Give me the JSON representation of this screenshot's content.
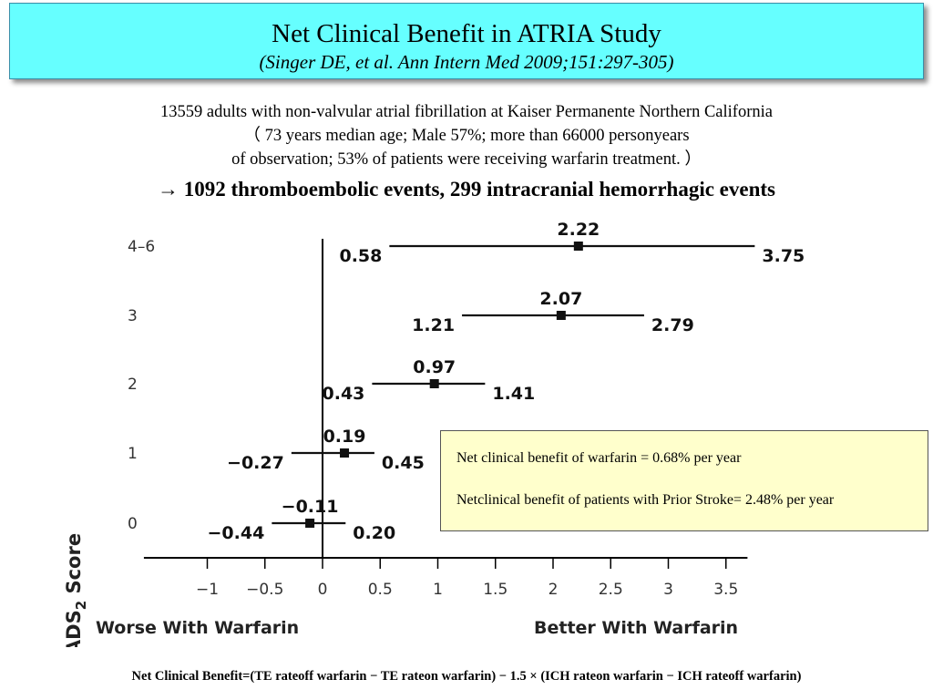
{
  "header": {
    "title": "Net Clinical Benefit in ATRIA Study",
    "subtitle": "(Singer DE, et al. Ann Intern Med 2009;151:297-305)"
  },
  "intro": {
    "line1": "13559 adults with non-valvular atrial fibrillation at Kaiser Permanente Northern California",
    "line2": "（ 73 years median age; Male 57%; more than 66000 personyears",
    "line3": "of observation; 53% of patients were receiving warfarin treatment. ）",
    "line4": "→ 1092 thromboembolic events, 299 intracranial hemorrhagic events"
  },
  "note": {
    "line1": "Net clinical benefit of warfarin = 0.68% per year",
    "line2": "Netclinical benefit of patients with Prior Stroke= 2.48% per year"
  },
  "footer": {
    "formula": "Net Clinical Benefit=(TE rateoff warfarin − TE rateon warfarin) − 1.5 × (ICH rateon warfarin − ICH rateoff warfarin)"
  },
  "chart_data": {
    "type": "forest",
    "ylabel_main": "CHADS",
    "ylabel_sub": "2",
    "ylabel_tail": " Score",
    "xlabel_left": "Worse With Warfarin",
    "xlabel_right": "Better With Warfarin",
    "xlim": [
      -1.55,
      3.75
    ],
    "xticks": [
      -1,
      -0.5,
      0,
      0.5,
      1,
      1.5,
      2,
      2.5,
      3,
      3.5
    ],
    "xtick_labels": [
      "−1",
      "−0.5",
      "0",
      "0.5",
      "1",
      "1.5",
      "2",
      "2.5",
      "3",
      "3.5"
    ],
    "reference_line": 0,
    "rows": [
      {
        "category": "4–6",
        "estimate": 2.22,
        "lower": 0.58,
        "upper": 3.75,
        "estimate_label": "2.22",
        "lower_label": "0.58",
        "upper_label": "3.75"
      },
      {
        "category": "3",
        "estimate": 2.07,
        "lower": 1.21,
        "upper": 2.79,
        "estimate_label": "2.07",
        "lower_label": "1.21",
        "upper_label": "2.79"
      },
      {
        "category": "2",
        "estimate": 0.97,
        "lower": 0.43,
        "upper": 1.41,
        "estimate_label": "0.97",
        "lower_label": "0.43",
        "upper_label": "1.41"
      },
      {
        "category": "1",
        "estimate": 0.19,
        "lower": -0.27,
        "upper": 0.45,
        "estimate_label": "0.19",
        "lower_label": "−0.27",
        "upper_label": "0.45"
      },
      {
        "category": "0",
        "estimate": -0.11,
        "lower": -0.44,
        "upper": 0.2,
        "estimate_label": "−0.11",
        "lower_label": "−0.44",
        "upper_label": "0.20"
      }
    ]
  }
}
